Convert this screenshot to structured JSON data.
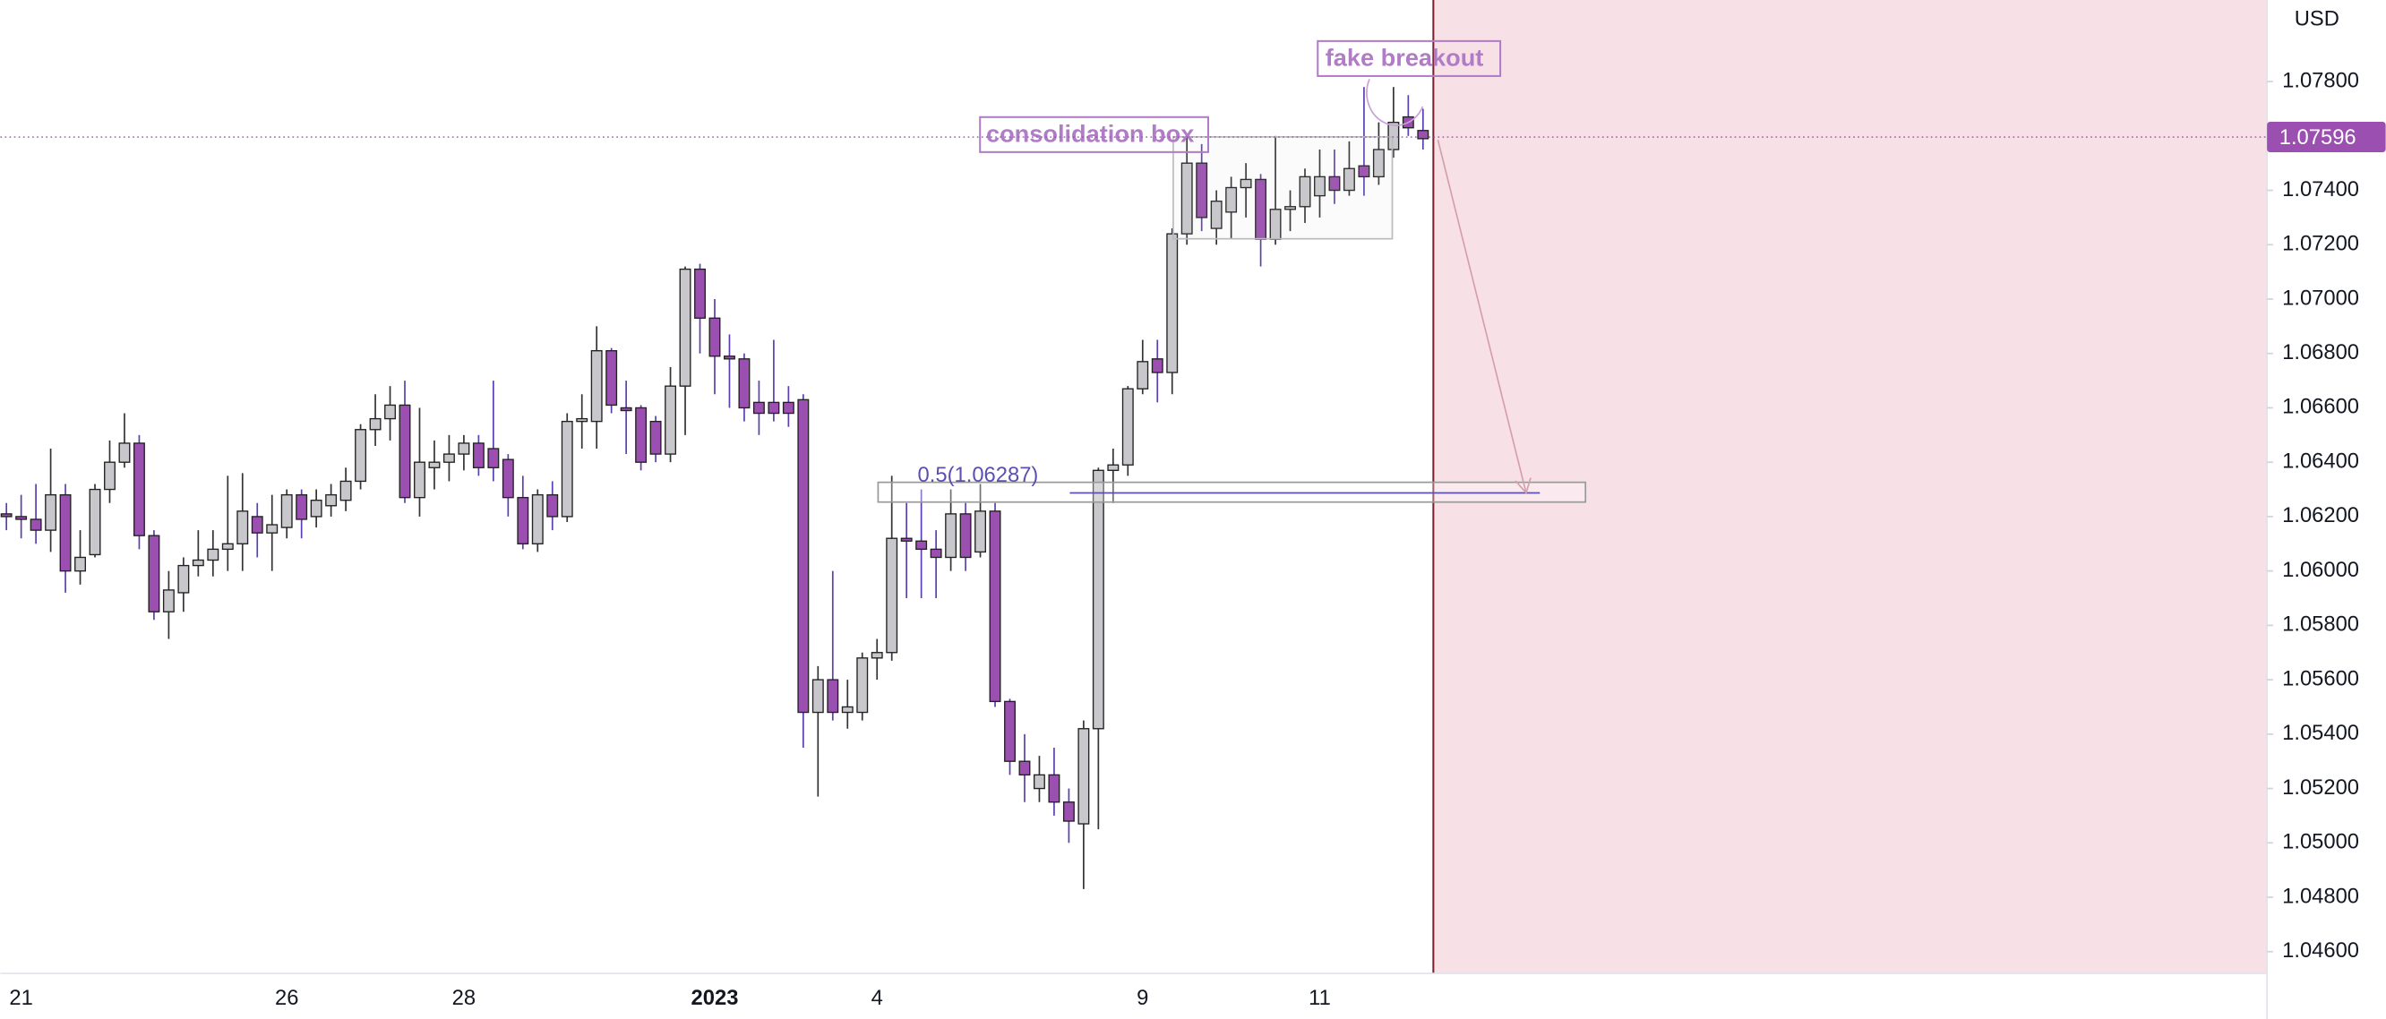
{
  "chart_data": {
    "type": "candlestick",
    "axis_label": "USD",
    "up_color": "#c8c8cc",
    "down_color": "#9b4fb0",
    "ylim": [
      1.0452,
      1.081
    ],
    "yticks": [
      {
        "value": 1.046,
        "label": "1.04600"
      },
      {
        "value": 1.048,
        "label": "1.04800"
      },
      {
        "value": 1.05,
        "label": "1.05000"
      },
      {
        "value": 1.052,
        "label": "1.05200"
      },
      {
        "value": 1.054,
        "label": "1.05400"
      },
      {
        "value": 1.056,
        "label": "1.05600"
      },
      {
        "value": 1.058,
        "label": "1.05800"
      },
      {
        "value": 1.06,
        "label": "1.06000"
      },
      {
        "value": 1.062,
        "label": "1.06200"
      },
      {
        "value": 1.064,
        "label": "1.06400"
      },
      {
        "value": 1.066,
        "label": "1.06600"
      },
      {
        "value": 1.068,
        "label": "1.06800"
      },
      {
        "value": 1.07,
        "label": "1.07000"
      },
      {
        "value": 1.072,
        "label": "1.07200"
      },
      {
        "value": 1.074,
        "label": "1.07400"
      },
      {
        "value": 1.078,
        "label": "1.07800"
      }
    ],
    "xticks": [
      {
        "value": 1,
        "label": "21"
      },
      {
        "value": 19,
        "label": "26"
      },
      {
        "value": 31,
        "label": "28"
      },
      {
        "value": 48,
        "label": "2023"
      },
      {
        "value": 59,
        "label": "4"
      },
      {
        "value": 77,
        "label": "9"
      },
      {
        "value": 89,
        "label": "11"
      }
    ],
    "last_price": 1.07596,
    "fib_level": 1.06287,
    "annotations": [
      "consolidation box",
      "fake breakout",
      "0.5(1.06287)"
    ],
    "open": [
      1.0621,
      1.062,
      1.0619,
      1.0615,
      1.0628,
      1.06,
      1.0606,
      1.063,
      1.064,
      1.0647,
      1.0613,
      1.0585,
      1.0592,
      1.0602,
      1.0604,
      1.0608,
      1.061,
      1.062,
      1.0614,
      1.0616,
      1.0628,
      1.062,
      1.0624,
      1.0626,
      1.0633,
      1.0652,
      1.0656,
      1.0661,
      1.0627,
      1.0638,
      1.064,
      1.0643,
      1.0647,
      1.0645,
      1.0641,
      1.0627,
      1.061,
      1.0628,
      1.062,
      1.0655,
      1.0655,
      1.0681,
      1.066,
      1.066,
      1.0655,
      1.0643,
      1.0668,
      1.0711,
      1.0693,
      1.0679,
      1.0678,
      1.0662,
      1.0662,
      1.0662,
      1.0663,
      1.0548,
      1.056,
      1.0548,
      1.0548,
      1.0568,
      1.057,
      1.0612,
      1.0611,
      1.0608,
      1.0605,
      1.0621,
      1.0607,
      1.0622,
      1.0552,
      1.053,
      1.052,
      1.0525,
      1.0515,
      1.0507,
      1.0542,
      1.0637,
      1.0639,
      1.0667,
      1.0678,
      1.0673,
      1.0724,
      1.075,
      1.0726,
      1.0732,
      1.0741,
      1.0744,
      1.0722,
      1.0733,
      1.0734,
      1.0738,
      1.0745,
      1.074,
      1.0749,
      1.0745,
      1.0755,
      1.0767,
      1.0762
    ],
    "high": [
      1.0625,
      1.0628,
      1.0632,
      1.0645,
      1.0632,
      1.0615,
      1.0632,
      1.0648,
      1.0658,
      1.065,
      1.0615,
      1.06,
      1.0605,
      1.0615,
      1.0615,
      1.0635,
      1.0636,
      1.0625,
      1.0628,
      1.063,
      1.063,
      1.063,
      1.0632,
      1.0638,
      1.0654,
      1.0665,
      1.0668,
      1.067,
      1.066,
      1.0648,
      1.065,
      1.065,
      1.065,
      1.067,
      1.0643,
      1.0635,
      1.063,
      1.0633,
      1.0658,
      1.0665,
      1.069,
      1.0682,
      1.067,
      1.0661,
      1.0657,
      1.0675,
      1.0712,
      1.0713,
      1.07,
      1.0687,
      1.068,
      1.067,
      1.0685,
      1.0668,
      1.0665,
      1.0565,
      1.06,
      1.056,
      1.057,
      1.0575,
      1.0635,
      1.0625,
      1.063,
      1.0615,
      1.063,
      1.0625,
      1.0632,
      1.0625,
      1.0553,
      1.054,
      1.0532,
      1.0535,
      1.052,
      1.0545,
      1.0638,
      1.0645,
      1.0668,
      1.0685,
      1.0685,
      1.0726,
      1.076,
      1.0757,
      1.074,
      1.0745,
      1.075,
      1.0746,
      1.076,
      1.074,
      1.0748,
      1.0755,
      1.0755,
      1.0758,
      1.0778,
      1.0765,
      1.0778,
      1.0775,
      1.077
    ],
    "low": [
      1.0615,
      1.0612,
      1.061,
      1.0607,
      1.0592,
      1.0595,
      1.0605,
      1.0625,
      1.0638,
      1.0608,
      1.0582,
      1.0575,
      1.0585,
      1.0598,
      1.0598,
      1.06,
      1.06,
      1.0605,
      1.06,
      1.0612,
      1.0612,
      1.0616,
      1.062,
      1.0622,
      1.063,
      1.0646,
      1.0648,
      1.0625,
      1.062,
      1.063,
      1.0633,
      1.0637,
      1.0635,
      1.0633,
      1.062,
      1.0608,
      1.0607,
      1.0615,
      1.0618,
      1.0645,
      1.0645,
      1.0658,
      1.0643,
      1.0637,
      1.064,
      1.064,
      1.065,
      1.068,
      1.0665,
      1.066,
      1.0655,
      1.065,
      1.0655,
      1.0653,
      1.0535,
      1.0517,
      1.0545,
      1.0542,
      1.0545,
      1.056,
      1.0567,
      1.059,
      1.059,
      1.059,
      1.06,
      1.06,
      1.0605,
      1.055,
      1.0525,
      1.0515,
      1.0515,
      1.051,
      1.05,
      1.0483,
      1.0505,
      1.0625,
      1.0635,
      1.0665,
      1.0662,
      1.0665,
      1.072,
      1.0725,
      1.072,
      1.0722,
      1.073,
      1.0712,
      1.072,
      1.0725,
      1.0728,
      1.073,
      1.0735,
      1.0738,
      1.0738,
      1.0742,
      1.0752,
      1.076,
      1.0755
    ],
    "close": [
      1.062,
      1.0619,
      1.0615,
      1.0628,
      1.06,
      1.0605,
      1.063,
      1.064,
      1.0647,
      1.0613,
      1.0585,
      1.0593,
      1.0602,
      1.0604,
      1.0608,
      1.061,
      1.0622,
      1.0614,
      1.0617,
      1.0628,
      1.0619,
      1.0626,
      1.0628,
      1.0633,
      1.0652,
      1.0656,
      1.0661,
      1.0627,
      1.064,
      1.064,
      1.0643,
      1.0647,
      1.0638,
      1.0638,
      1.0627,
      1.061,
      1.0628,
      1.062,
      1.0655,
      1.0656,
      1.0681,
      1.0661,
      1.0659,
      1.064,
      1.0643,
      1.0668,
      1.0711,
      1.0693,
      1.0679,
      1.0678,
      1.066,
      1.0658,
      1.0658,
      1.0658,
      1.0548,
      1.056,
      1.0548,
      1.055,
      1.0568,
      1.057,
      1.0612,
      1.0611,
      1.0608,
      1.0605,
      1.0621,
      1.0605,
      1.0622,
      1.0552,
      1.053,
      1.0525,
      1.0525,
      1.0515,
      1.0508,
      1.0542,
      1.0637,
      1.0639,
      1.0667,
      1.0677,
      1.0673,
      1.0724,
      1.075,
      1.073,
      1.0736,
      1.0741,
      1.0744,
      1.0722,
      1.0733,
      1.0734,
      1.0745,
      1.0745,
      1.074,
      1.0748,
      1.0745,
      1.0755,
      1.0765,
      1.0763,
      1.0759
    ]
  }
}
